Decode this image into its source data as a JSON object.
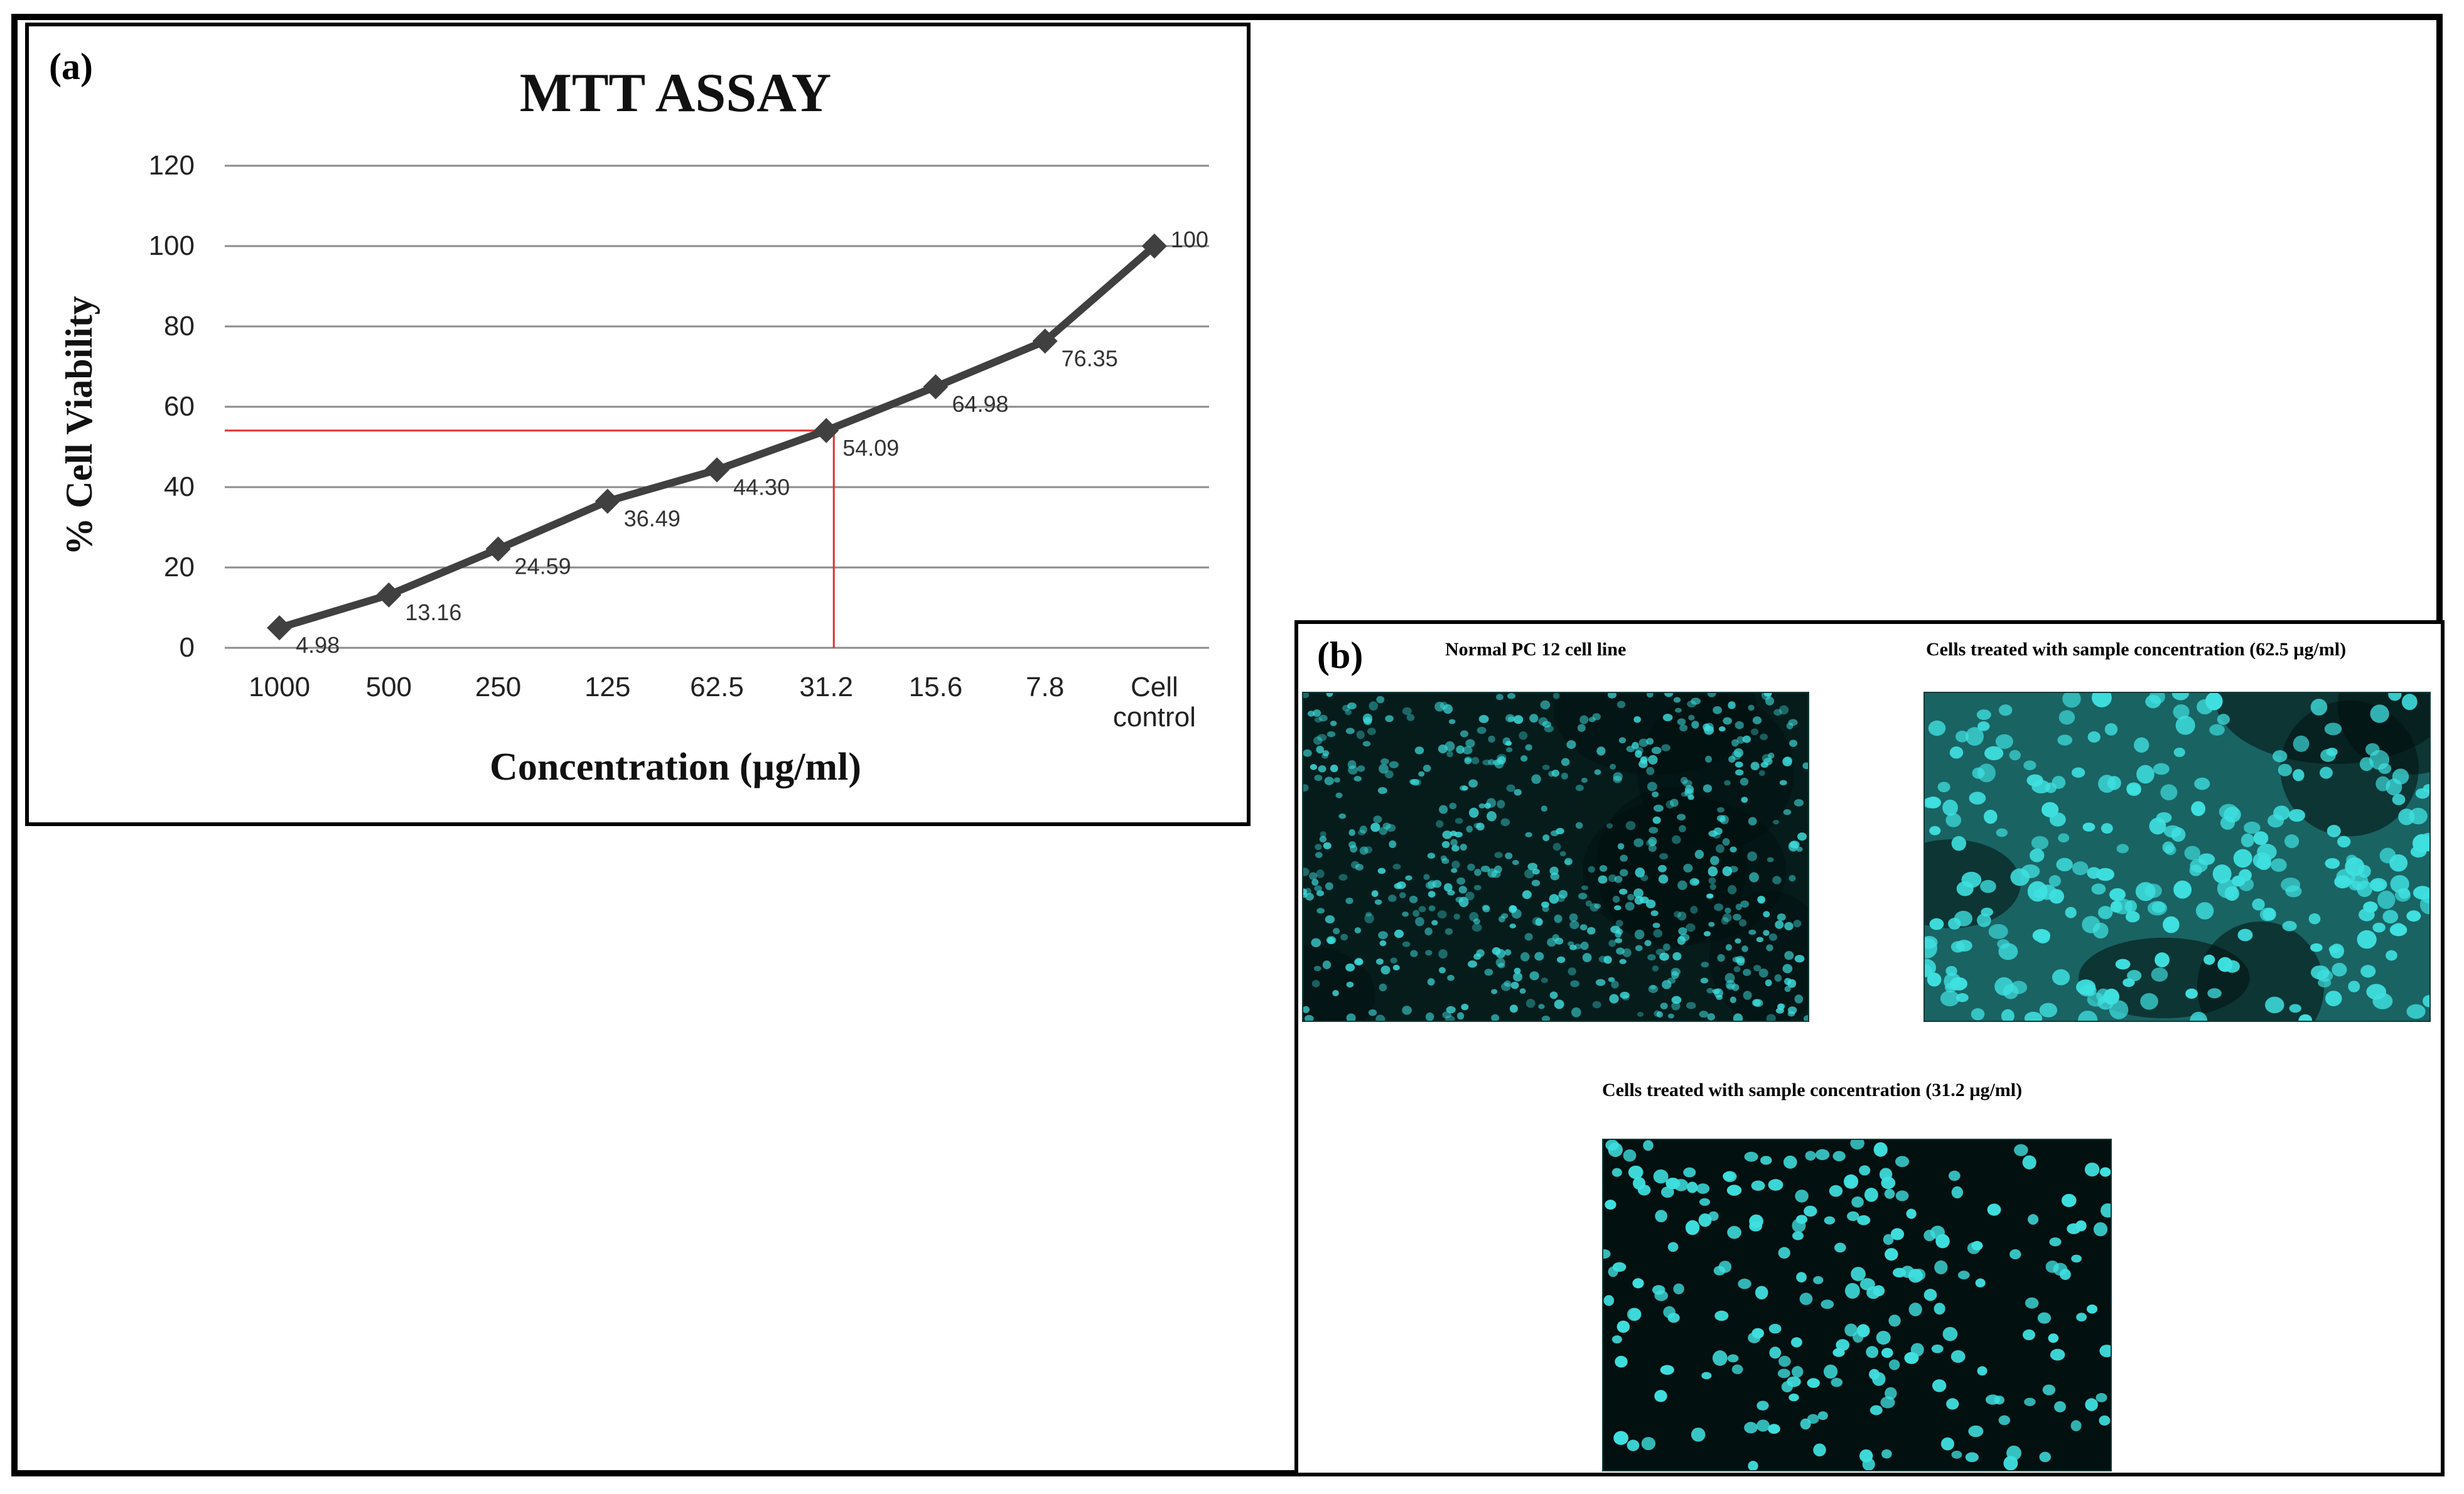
{
  "panel_a": {
    "label": "(a)"
  },
  "chart_data": {
    "type": "line",
    "title": "MTT ASSAY",
    "xlabel": "Concentration (µg/ml)",
    "ylabel": "%  Cell Viability",
    "categories": [
      "1000",
      "500",
      "250",
      "125",
      "62.5",
      "31.2",
      "15.6",
      "7.8",
      "Cell control"
    ],
    "series": [
      {
        "values": [
          4.98,
          13.16,
          24.59,
          36.49,
          44.3,
          54.09,
          64.98,
          76.35,
          100
        ],
        "data_labels": [
          "4.98",
          "13.16",
          "24.59",
          "36.49",
          "44.30",
          "54.09",
          "64.98",
          "76.35",
          "100"
        ]
      }
    ],
    "ylim": [
      0,
      120
    ],
    "yticks": [
      "0",
      "20",
      "40",
      "60",
      "80",
      "100",
      "120"
    ],
    "grid": "horizontal",
    "legend": "none",
    "reference_lines": {
      "y": 54.09,
      "x_category": "31.2"
    },
    "colors": {
      "series": "#404040",
      "reference": "#e03030",
      "grid": "#8c8c8c"
    }
  },
  "panel_b": {
    "label": "(b)",
    "images": [
      {
        "caption": "Normal PC 12 cell line",
        "style": "normal"
      },
      {
        "caption": "Cells treated with sample concentration  (62.5 µg/ml)",
        "style": "dense"
      },
      {
        "caption": "Cells treated with sample concentration  (31.2 µg/ml)",
        "style": "sparse"
      }
    ],
    "colors": {
      "nuclei": "#3fe0e0",
      "background": "#02100f"
    }
  }
}
